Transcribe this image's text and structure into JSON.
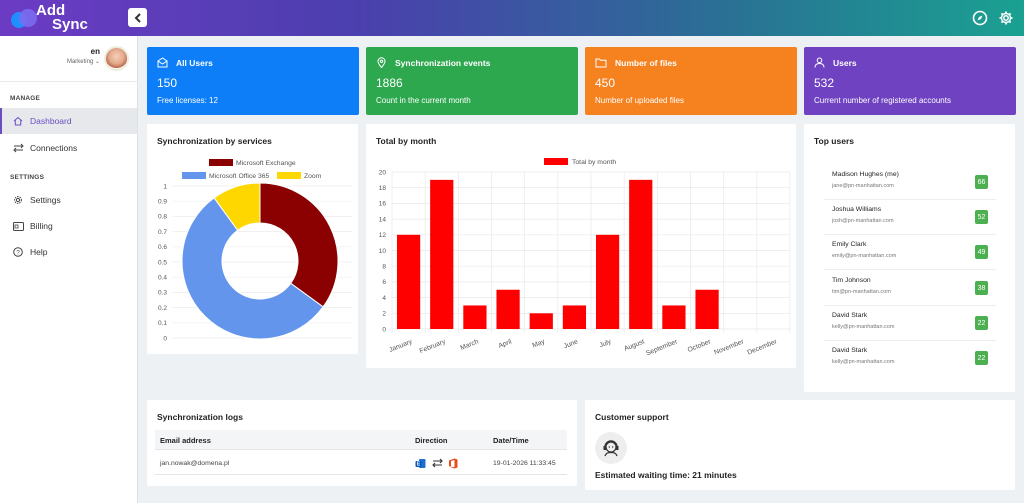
{
  "app": {
    "logo_line1": "Add",
    "logo_line2": "Sync"
  },
  "profile": {
    "lang": "en",
    "role": "Marketing"
  },
  "sidebar": {
    "manage_header": "MANAGE",
    "settings_header": "SETTINGS",
    "items": [
      {
        "label": "Dashboard",
        "icon": "home-icon"
      },
      {
        "label": "Connections",
        "icon": "arrows-icon"
      },
      {
        "label": "Settings",
        "icon": "gear-icon"
      },
      {
        "label": "Billing",
        "icon": "credit-card-icon"
      },
      {
        "label": "Help",
        "icon": "help-icon"
      }
    ]
  },
  "stats": [
    {
      "title": "All Users",
      "value": "150",
      "sub": "Free licenses: 12",
      "color": "#0d7ef8",
      "icon": "envelope-icon"
    },
    {
      "title": "Synchronization events",
      "value": "1886",
      "sub": "Count in the current month",
      "color": "#2ea84f",
      "icon": "map-pin-icon"
    },
    {
      "title": "Number of files",
      "value": "450",
      "sub": "Number of uploaded files",
      "color": "#f5821f",
      "icon": "folder-icon"
    },
    {
      "title": "Users",
      "value": "532",
      "sub": "Current number of registered accounts",
      "color": "#6f42c1",
      "icon": "user-icon"
    }
  ],
  "donut": {
    "title": "Synchronization by services",
    "yticks": [
      "1",
      "0.9",
      "0.8",
      "0.7",
      "0.6",
      "0.5",
      "0.4",
      "0.3",
      "0.2",
      "0.1",
      "0"
    ]
  },
  "bar": {
    "title": "Total by month"
  },
  "chart_data": [
    {
      "type": "pie",
      "title": "Synchronization by services",
      "labels": [
        "Microsoft Exchange",
        "Microsoft Office 365",
        "Zoom"
      ],
      "values": [
        0.35,
        0.55,
        0.1
      ],
      "colors": [
        "#8b0000",
        "#6495ed",
        "#ffd700"
      ]
    },
    {
      "type": "bar",
      "title": "Total by month",
      "categories": [
        "January",
        "February",
        "March",
        "April",
        "May",
        "June",
        "July",
        "August",
        "September",
        "October",
        "November",
        "December"
      ],
      "series": [
        {
          "name": "Total by month",
          "values": [
            12,
            19,
            3,
            5,
            2,
            3,
            12,
            19,
            3,
            5,
            0,
            0
          ]
        }
      ],
      "ylim": [
        0,
        20
      ],
      "yticks": [
        0,
        2,
        4,
        6,
        8,
        10,
        12,
        14,
        16,
        18,
        20
      ],
      "color": "#ff0000"
    }
  ],
  "top_users": {
    "title": "Top users",
    "rows": [
      {
        "name": "Madison Hughes (me)",
        "email": "jane@pn-manhattan.com",
        "count": "66"
      },
      {
        "name": "Joshua Williams",
        "email": "josh@pn-manhattan.com",
        "count": "52"
      },
      {
        "name": "Emily Clark",
        "email": "emily@pn-manhattan.com",
        "count": "49"
      },
      {
        "name": "Tim Johnson",
        "email": "tim@pn-manhattan.com",
        "count": "38"
      },
      {
        "name": "David Stark",
        "email": "kelly@pn-manhattan.com",
        "count": "22"
      },
      {
        "name": "David Stark",
        "email": "kelly@pn-manhattan.com",
        "count": "22"
      }
    ]
  },
  "logs": {
    "title": "Synchronization logs",
    "headers": [
      "Email address",
      "Direction",
      "Date/Time"
    ],
    "rows": [
      {
        "email": "jan.nowak@domena.pl",
        "datetime": "19-01-2026 11:33:45"
      }
    ]
  },
  "support": {
    "title": "Customer support",
    "wait": "Estimated waiting time: 21 minutes"
  }
}
